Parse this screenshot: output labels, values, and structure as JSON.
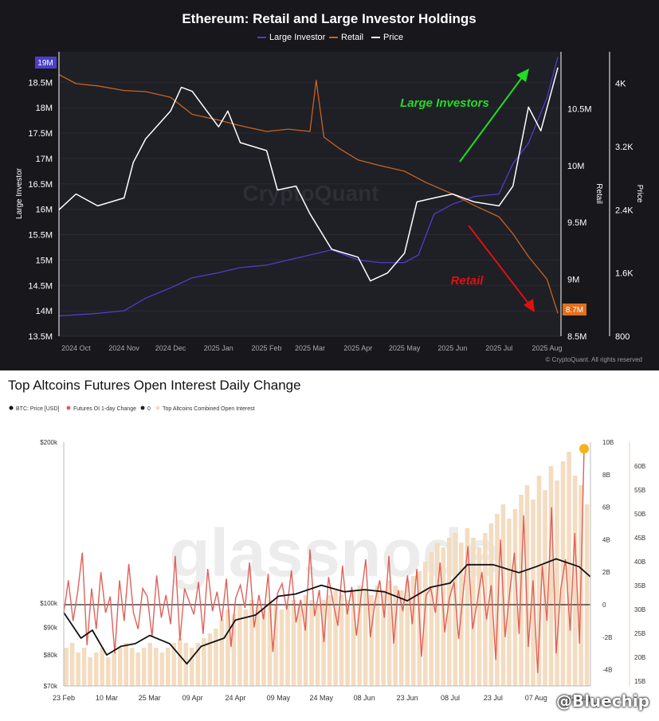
{
  "chart_data": [
    {
      "type": "line",
      "title": "Ethereum: Retail and Large Investor Holdings",
      "legend": [
        "Large Investor",
        "Retail",
        "Price"
      ],
      "legend_placement": "top-center",
      "x_ticks": [
        "2024 Oct",
        "2024 Nov",
        "2024 Dec",
        "2025 Jan",
        "2025 Feb",
        "2025 Mar",
        "2025 Apr",
        "2025 May",
        "2025 Jun",
        "2025 Jul",
        "2025 Aug"
      ],
      "ylabel_left": "Large Investor",
      "ylabel_right1": "Retail",
      "ylabel_right2": "Price",
      "y_left_ticks": [
        "13.5M",
        "14M",
        "14.5M",
        "15M",
        "15.5M",
        "16M",
        "16.5M",
        "17M",
        "17.5M",
        "18M",
        "18.5M"
      ],
      "y_left_ticks_values": [
        13.5,
        14,
        14.5,
        15,
        15.5,
        16,
        16.5,
        17,
        17.5,
        18,
        18.5
      ],
      "y_left_range": [
        13.5,
        19.1
      ],
      "y_left_highlight": "19M",
      "y_right1_ticks": [
        "8.5M",
        "9M",
        "9.5M",
        "10M",
        "10.5M"
      ],
      "y_right1_ticks_values": [
        8.5,
        9,
        9.5,
        10,
        10.5
      ],
      "y_right1_range": [
        8.5,
        11.0
      ],
      "y_right1_highlight": "8.7M",
      "y_right2_ticks": [
        "800",
        "1.6K",
        "2.4K",
        "3.2K",
        "4K"
      ],
      "y_right2_ticks_values": [
        800,
        1600,
        2400,
        3200,
        4000
      ],
      "y_right2_range": [
        800,
        4400
      ],
      "annotations": [
        {
          "text": "Large Investors",
          "color": "#22dd22"
        },
        {
          "text": "Retail",
          "color": "#e01010"
        }
      ],
      "source": "© CryptoQuant. All rights reserved",
      "watermark": "CryptoQuant",
      "colors": {
        "large_investor": "#4b3fc9",
        "retail": "#c8641f",
        "price": "#ffffff",
        "highlight_left": "#4b3fc9",
        "highlight_right": "#e07020"
      },
      "series": [
        {
          "name": "Large Investor",
          "axis": "left",
          "x": [
            "2024-09-20",
            "2024-10-01",
            "2024-10-15",
            "2024-11-01",
            "2024-11-15",
            "2024-12-01",
            "2024-12-15",
            "2025-01-01",
            "2025-01-15",
            "2025-02-01",
            "2025-02-15",
            "2025-03-01",
            "2025-03-15",
            "2025-04-01",
            "2025-04-15",
            "2025-05-01",
            "2025-05-10",
            "2025-05-20",
            "2025-06-01",
            "2025-06-15",
            "2025-07-01",
            "2025-07-10",
            "2025-07-20",
            "2025-08-01",
            "2025-08-08"
          ],
          "values": [
            13.9,
            13.92,
            13.95,
            14.0,
            14.25,
            14.45,
            14.65,
            14.75,
            14.85,
            14.9,
            15.0,
            15.1,
            15.2,
            15.0,
            14.95,
            14.95,
            15.1,
            15.9,
            16.1,
            16.25,
            16.3,
            16.9,
            17.3,
            18.2,
            19.0
          ]
        },
        {
          "name": "Retail",
          "axis": "right1",
          "x": [
            "2024-09-20",
            "2024-10-01",
            "2024-10-15",
            "2024-11-01",
            "2024-11-15",
            "2024-12-01",
            "2024-12-15",
            "2025-01-01",
            "2025-01-15",
            "2025-02-01",
            "2025-02-15",
            "2025-03-01",
            "2025-03-05",
            "2025-03-10",
            "2025-03-20",
            "2025-04-01",
            "2025-04-15",
            "2025-05-01",
            "2025-05-15",
            "2025-06-01",
            "2025-06-15",
            "2025-07-01",
            "2025-07-10",
            "2025-07-20",
            "2025-08-01",
            "2025-08-08"
          ],
          "values": [
            10.8,
            10.72,
            10.7,
            10.66,
            10.65,
            10.6,
            10.45,
            10.4,
            10.35,
            10.3,
            10.32,
            10.3,
            10.75,
            10.25,
            10.15,
            10.05,
            10.0,
            9.95,
            9.85,
            9.75,
            9.65,
            9.55,
            9.4,
            9.2,
            9.0,
            8.7
          ]
        },
        {
          "name": "Price",
          "axis": "right2",
          "x": [
            "2024-09-20",
            "2024-10-01",
            "2024-10-15",
            "2024-11-01",
            "2024-11-07",
            "2024-11-15",
            "2024-12-01",
            "2024-12-08",
            "2024-12-15",
            "2025-01-01",
            "2025-01-07",
            "2025-01-15",
            "2025-02-01",
            "2025-02-08",
            "2025-02-20",
            "2025-03-01",
            "2025-03-15",
            "2025-04-01",
            "2025-04-09",
            "2025-04-20",
            "2025-05-01",
            "2025-05-09",
            "2025-05-20",
            "2025-06-01",
            "2025-06-15",
            "2025-07-01",
            "2025-07-10",
            "2025-07-20",
            "2025-07-28",
            "2025-08-08"
          ],
          "values": [
            2400,
            2600,
            2450,
            2550,
            3000,
            3300,
            3650,
            3950,
            3900,
            3450,
            3650,
            3250,
            3150,
            2650,
            2700,
            2350,
            1900,
            1800,
            1500,
            1600,
            1850,
            2500,
            2550,
            2600,
            2500,
            2450,
            2700,
            3700,
            3400,
            4200
          ]
        }
      ]
    },
    {
      "type": "line",
      "title": "Top Altcoins Futures Open Interest Daily Change",
      "legend": [
        "BTC: Price [USD]",
        "Futures OI 1-day Change",
        "0",
        "Top Altcoins Combined Open Interest"
      ],
      "legend_placement": "top-left",
      "x_ticks": [
        "23 Feb",
        "10 Mar",
        "25 Mar",
        "09 Apr",
        "24 Apr",
        "09 May",
        "24 May",
        "08 Jun",
        "23 Jun",
        "08 Jul",
        "23 Jul",
        "07 Aug",
        "22 Aug"
      ],
      "y_left_ticks": [
        "$70k",
        "$80k",
        "$90k",
        "$100k",
        "$200k"
      ],
      "y_left_ticks_values": [
        70000,
        80000,
        90000,
        100000,
        200000
      ],
      "y_left_range": [
        70000,
        200000
      ],
      "y_left_scale": "log",
      "y_mid_ticks": [
        "-4B",
        "-2B",
        "0",
        "2B",
        "4B",
        "6B",
        "8B",
        "10B"
      ],
      "y_mid_ticks_values": [
        -4,
        -2,
        0,
        2,
        4,
        6,
        8,
        10
      ],
      "y_mid_range": [
        -5,
        10
      ],
      "y_right_ticks": [
        "15B",
        "20B",
        "25B",
        "30B",
        "35B",
        "40B",
        "45B",
        "50B",
        "55B",
        "60B"
      ],
      "y_right_ticks_values": [
        15,
        20,
        25,
        30,
        35,
        40,
        45,
        50,
        55,
        60
      ],
      "y_right_range": [
        14,
        65
      ],
      "watermark": "glassnode",
      "corner_watermark": "@Bluechip",
      "colors": {
        "btc": "#111111",
        "oi_change": "#e0605a",
        "zero": "#222222",
        "combined_oi": "#f3dcc0",
        "dot": "#f5b21b"
      },
      "series": [
        {
          "name": "BTC: Price [USD]",
          "axis": "left",
          "x": [
            "2025-02-23",
            "2025-03-01",
            "2025-03-05",
            "2025-03-10",
            "2025-03-15",
            "2025-03-20",
            "2025-03-25",
            "2025-04-01",
            "2025-04-07",
            "2025-04-12",
            "2025-04-20",
            "2025-04-24",
            "2025-05-01",
            "2025-05-09",
            "2025-05-15",
            "2025-05-24",
            "2025-06-01",
            "2025-06-08",
            "2025-06-15",
            "2025-06-23",
            "2025-07-01",
            "2025-07-08",
            "2025-07-14",
            "2025-07-23",
            "2025-08-01",
            "2025-08-07",
            "2025-08-14",
            "2025-08-22",
            "2025-08-26"
          ],
          "values": [
            96000,
            86000,
            89000,
            80000,
            83000,
            84000,
            87000,
            84000,
            77000,
            83000,
            86000,
            93000,
            95000,
            103000,
            104000,
            108000,
            105000,
            106000,
            105000,
            101000,
            107000,
            109000,
            118000,
            118000,
            114000,
            117000,
            121000,
            117000,
            112000
          ]
        },
        {
          "name": "Futures OI 1-day Change",
          "axis": "mid",
          "values": [
            -0.5,
            1.5,
            -1.0,
            0.8,
            3.2,
            -2.5,
            1.0,
            -1.5,
            2.0,
            -0.5,
            0.5,
            -3.0,
            1.5,
            -1.0,
            2.5,
            -0.5,
            -1.5,
            1.0,
            0.5,
            -2.0,
            1.8,
            -0.8,
            0.6,
            -1.2,
            3.0,
            -2.2,
            1.0,
            0.2,
            -0.6,
            1.4,
            -1.8,
            2.2,
            -0.4,
            0.8,
            -1.0,
            1.6,
            -2.6,
            0.4,
            1.2,
            -0.2,
            2.6,
            -1.4,
            0.6,
            -0.9,
            1.9,
            -2.9,
            0.7,
            1.3,
            -0.3,
            2.1,
            -1.1,
            0.3,
            -1.6,
            3.4,
            -0.7,
            0.9,
            -2.3,
            1.7,
            0.1,
            -1.3,
            2.4,
            -0.6,
            1.1,
            -1.9,
            0.5,
            2.8,
            -2.0,
            0.2,
            1.5,
            -0.8,
            3.0,
            -2.4,
            0.9,
            -0.4,
            1.8,
            -1.2,
            2.2,
            -3.2,
            0.6,
            1.0,
            -0.5,
            2.6,
            -1.7,
            0.4,
            1.4,
            -2.1,
            0.8,
            3.6,
            -1.5,
            0.2,
            2.0,
            -0.9,
            1.2,
            -3.4,
            4.0,
            -2.0,
            0.8,
            3.2,
            -1.8,
            5.5,
            -2.6,
            1.5,
            -4.2,
            2.4,
            -1.0,
            6.0,
            -3.0,
            1.0,
            2.8,
            -1.6,
            4.4,
            -2.4,
            9.6
          ]
        },
        {
          "name": "Top Altcoins Combined Open Interest",
          "axis": "right",
          "type": "bar",
          "values": [
            22,
            23,
            21,
            22,
            20,
            21,
            22,
            20,
            21,
            22,
            23,
            22,
            21,
            22,
            23,
            22,
            21,
            22,
            23,
            24,
            23,
            22,
            23,
            24,
            25,
            26,
            28,
            30,
            29,
            31,
            30,
            32,
            31,
            30,
            32,
            31,
            30,
            31,
            32,
            31,
            33,
            32,
            31,
            32,
            33,
            34,
            33,
            32,
            34,
            35,
            34,
            33,
            35,
            34,
            36,
            35,
            34,
            36,
            37,
            38,
            40,
            42,
            44,
            43,
            45,
            46,
            44,
            47,
            45,
            43,
            46,
            48,
            50,
            52,
            49,
            51,
            54,
            56,
            53,
            58,
            55,
            60,
            57,
            61,
            63,
            58,
            56,
            52
          ]
        }
      ],
      "highlight_point": {
        "value": 9.6,
        "color": "#f5b21b"
      }
    }
  ]
}
